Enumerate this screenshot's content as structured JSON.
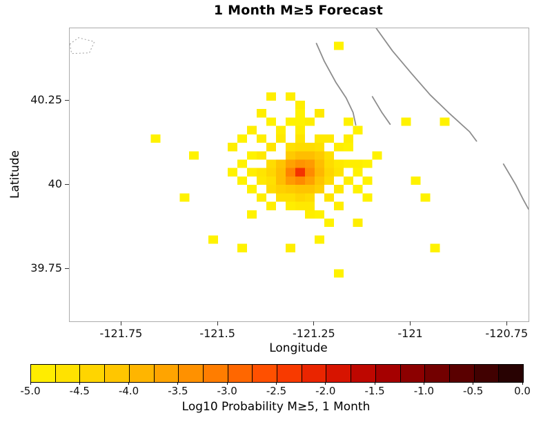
{
  "chart_data": {
    "type": "heatmap",
    "title": "1 Month M≥5 Forecast",
    "xlabel": "Longitude",
    "ylabel": "Latitude",
    "xlim": [
      -121.885,
      -120.695
    ],
    "ylim": [
      39.595,
      40.465
    ],
    "grid": false,
    "x_ticks": [
      -121.75,
      -121.5,
      -121.25,
      -121.0,
      -120.75
    ],
    "x_tick_labels": [
      "-121.75",
      "-121.5",
      "-121.25",
      "-121",
      "-120.75"
    ],
    "y_ticks": [
      40.25,
      40.0,
      39.75
    ],
    "y_tick_labels": [
      "40.25",
      "40",
      "39.75"
    ],
    "cell_size_deg": 0.025,
    "cells": [
      [
        -121.2875,
        40.0375,
        -2.3
      ],
      [
        -121.3125,
        40.0375,
        -3.2
      ],
      [
        -121.2625,
        40.0375,
        -3.3
      ],
      [
        -121.2875,
        40.0625,
        -3.4
      ],
      [
        -121.2875,
        40.0125,
        -3.3
      ],
      [
        -121.3125,
        40.0625,
        -3.6
      ],
      [
        -121.2625,
        40.0625,
        -3.5
      ],
      [
        -121.3125,
        40.0125,
        -3.5
      ],
      [
        -121.2625,
        40.0125,
        -3.6
      ],
      [
        -121.3375,
        40.0375,
        -4.0
      ],
      [
        -121.2375,
        40.0375,
        -3.9
      ],
      [
        -121.2875,
        40.0875,
        -4.0
      ],
      [
        -121.2875,
        39.9875,
        -4.1
      ],
      [
        -121.3375,
        40.0625,
        -4.1
      ],
      [
        -121.3375,
        40.0125,
        -4.0
      ],
      [
        -121.2375,
        40.0625,
        -4.0
      ],
      [
        -121.2375,
        40.0125,
        -4.1
      ],
      [
        -121.2625,
        40.0875,
        -4.0
      ],
      [
        -121.3125,
        40.0875,
        -4.2
      ],
      [
        -121.2625,
        39.9875,
        -4.1
      ],
      [
        -121.3125,
        39.9875,
        -4.2
      ],
      [
        -121.2375,
        40.0875,
        -4.2
      ],
      [
        -121.3375,
        39.9875,
        -4.3
      ],
      [
        -121.2375,
        39.9875,
        -4.3
      ],
      [
        -121.3625,
        40.0375,
        -4.4
      ],
      [
        -121.2125,
        40.0375,
        -4.4
      ],
      [
        -121.2875,
        40.1125,
        -4.5
      ],
      [
        -121.2875,
        39.9625,
        -4.4
      ],
      [
        -121.3625,
        40.0625,
        -4.5
      ],
      [
        -121.2125,
        40.0625,
        -4.5
      ],
      [
        -121.3625,
        40.0125,
        -4.6
      ],
      [
        -121.2125,
        40.0125,
        -4.5
      ],
      [
        -121.2625,
        40.1125,
        -4.5
      ],
      [
        -121.3125,
        40.1125,
        -4.6
      ],
      [
        -121.2375,
        40.1125,
        -4.6
      ],
      [
        -121.2625,
        39.9625,
        -4.5
      ],
      [
        -121.3125,
        39.9625,
        -4.6
      ],
      [
        -121.3375,
        39.9625,
        -4.6
      ],
      [
        -121.2125,
        40.0875,
        -4.6
      ],
      [
        -121.3625,
        39.9875,
        -4.5
      ],
      [
        -121.2125,
        39.9625,
        -4.7
      ],
      [
        -121.3625,
        40.1125,
        -4.7
      ],
      [
        -121.3875,
        40.0375,
        -4.7
      ],
      [
        -121.1875,
        40.0375,
        -4.7
      ],
      [
        -121.2875,
        40.1375,
        -4.7
      ],
      [
        -121.2875,
        39.9375,
        -4.8
      ],
      [
        -121.3875,
        40.0875,
        -4.8
      ],
      [
        -121.1875,
        40.0625,
        -4.8
      ],
      [
        -121.3875,
        40.0125,
        -4.8
      ],
      [
        -121.1875,
        39.9875,
        -4.8
      ],
      [
        -121.2375,
        40.1375,
        -4.8
      ],
      [
        -121.3375,
        40.1375,
        -4.8
      ],
      [
        -121.2625,
        39.9375,
        -4.8
      ],
      [
        -121.3125,
        39.9375,
        -4.9
      ],
      [
        -121.1875,
        40.1125,
        -4.9
      ],
      [
        -121.3875,
        39.9625,
        -4.9
      ],
      [
        -121.2125,
        40.1375,
        -4.8
      ],
      [
        -121.3625,
        39.9375,
        -4.9
      ],
      [
        -121.4125,
        40.0375,
        -4.9
      ],
      [
        -121.1625,
        40.0625,
        -4.9
      ],
      [
        -121.2875,
        40.1625,
        -4.9
      ],
      [
        -121.2625,
        39.9125,
        -4.9
      ],
      [
        -121.4125,
        40.0875,
        -5.0
      ],
      [
        -121.1625,
        40.0125,
        -4.9
      ],
      [
        -121.3375,
        40.1625,
        -4.9
      ],
      [
        -121.4125,
        39.9875,
        -5.0
      ],
      [
        -121.1875,
        39.9375,
        -4.9
      ],
      [
        -121.3875,
        40.1375,
        -4.9
      ],
      [
        -121.2375,
        39.9125,
        -5.0
      ],
      [
        -121.1625,
        40.1125,
        -5.0
      ],
      [
        -121.4375,
        40.0625,
        -5.0
      ],
      [
        -121.1375,
        40.0375,
        -5.0
      ],
      [
        -121.2875,
        40.1875,
        -5.0
      ],
      [
        -121.3125,
        40.1875,
        -5.0
      ],
      [
        -121.1375,
        39.9875,
        -5.0
      ],
      [
        -121.4375,
        40.0125,
        -5.0
      ],
      [
        -121.2125,
        39.8875,
        -5.0
      ],
      [
        -121.3625,
        40.1875,
        -5.0
      ],
      [
        -121.2625,
        40.1875,
        -4.9
      ],
      [
        -121.1375,
        40.0625,
        -4.9
      ],
      [
        -121.1125,
        40.0625,
        -5.0
      ],
      [
        -121.4625,
        40.0375,
        -5.0
      ],
      [
        -121.2875,
        40.2125,
        -5.0
      ],
      [
        -121.1125,
        39.9625,
        -5.0
      ],
      [
        -121.4375,
        40.1375,
        -5.0
      ],
      [
        -121.1625,
        40.1875,
        -5.0
      ],
      [
        -121.4125,
        39.9125,
        -5.0
      ],
      [
        -121.1375,
        40.1625,
        -5.0
      ],
      [
        -121.4625,
        40.1125,
        -4.9
      ],
      [
        -121.4125,
        40.1625,
        -4.9
      ],
      [
        -121.3875,
        40.2125,
        -4.9
      ],
      [
        -121.2375,
        40.2125,
        -4.8
      ],
      [
        -121.1625,
        40.1375,
        -4.9
      ],
      [
        -121.1125,
        40.0125,
        -5.0
      ],
      [
        -121.6625,
        40.1375,
        -5.0
      ],
      [
        -121.5625,
        40.0875,
        -5.0
      ],
      [
        -121.5875,
        39.9625,
        -5.0
      ],
      [
        -121.5125,
        39.8375,
        -5.0
      ],
      [
        -121.4375,
        39.8125,
        -5.0
      ],
      [
        -121.3125,
        39.8125,
        -4.9
      ],
      [
        -121.2375,
        39.8375,
        -5.0
      ],
      [
        -121.1875,
        39.7375,
        -5.0
      ],
      [
        -121.1375,
        39.8875,
        -4.9
      ],
      [
        -121.0875,
        40.0875,
        -5.0
      ],
      [
        -121.0125,
        40.1875,
        -5.0
      ],
      [
        -120.9125,
        40.1875,
        -5.0
      ],
      [
        -120.9875,
        40.0125,
        -5.0
      ],
      [
        -120.9625,
        39.9625,
        -5.0
      ],
      [
        -120.9375,
        39.8125,
        -5.0
      ],
      [
        -121.1875,
        40.4125,
        -5.0
      ],
      [
        -121.3625,
        40.2625,
        -4.9
      ],
      [
        -121.3125,
        40.2625,
        -4.9
      ],
      [
        -121.2875,
        40.2375,
        -4.9
      ]
    ],
    "fault_lines": [
      [
        [
          -121.245,
          40.42
        ],
        [
          -121.225,
          40.368
        ],
        [
          -121.195,
          40.305
        ],
        [
          -121.168,
          40.258
        ],
        [
          -121.15,
          40.215
        ],
        [
          -121.143,
          40.178
        ]
      ],
      [
        [
          -121.09,
          40.465
        ],
        [
          -121.048,
          40.398
        ],
        [
          -120.998,
          40.33
        ],
        [
          -120.95,
          40.267
        ],
        [
          -120.9,
          40.212
        ],
        [
          -120.848,
          40.158
        ],
        [
          -120.83,
          40.13
        ]
      ],
      [
        [
          -121.1,
          40.262
        ],
        [
          -121.076,
          40.216
        ],
        [
          -121.054,
          40.18
        ]
      ],
      [
        [
          -120.76,
          40.062
        ],
        [
          -120.728,
          40.0
        ],
        [
          -120.708,
          39.955
        ],
        [
          -120.695,
          39.928
        ]
      ]
    ],
    "region_outline": [
      [
        -121.885,
        40.418
      ],
      [
        -121.862,
        40.437
      ],
      [
        -121.821,
        40.425
      ],
      [
        -121.834,
        40.392
      ],
      [
        -121.88,
        40.39
      ]
    ],
    "colorbar": {
      "label": "Log10 Probability M≥5, 1 Month",
      "min": -5.0,
      "max": 0.0,
      "segments": 20,
      "ticks": [
        -5.0,
        -4.5,
        -4.0,
        -3.5,
        -3.0,
        -2.5,
        -2.0,
        -1.5,
        -1.0,
        -0.5,
        0.0
      ],
      "tick_labels": [
        "-5.0",
        "-4.5",
        "-4.0",
        "-3.5",
        "-3.0",
        "-2.5",
        "-2.0",
        "-1.5",
        "-1.0",
        "-0.5",
        "0.0"
      ],
      "colormap_stops": [
        [
          -5.0,
          "#FFF200"
        ],
        [
          -4.5,
          "#FFDC00"
        ],
        [
          -4.0,
          "#FFBE00"
        ],
        [
          -3.5,
          "#FF9B00"
        ],
        [
          -3.0,
          "#FF7300"
        ],
        [
          -2.5,
          "#FF4400"
        ],
        [
          -2.0,
          "#E31A00"
        ],
        [
          -1.5,
          "#B20000"
        ],
        [
          -1.0,
          "#7F0000"
        ],
        [
          -0.5,
          "#4D0000"
        ],
        [
          0.0,
          "#1C0202"
        ]
      ]
    },
    "colors": {
      "fault_line": "#8c8c8c",
      "plot_border": "#ababab",
      "region_outline": "#9a9a9a",
      "tick_text": "#111111"
    }
  }
}
